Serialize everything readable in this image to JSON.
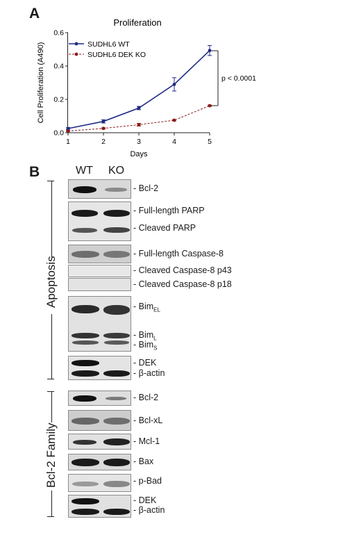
{
  "panel_a": {
    "letter": "A",
    "p_value": "p < 0.0001"
  },
  "panel_b": {
    "letter": "B",
    "lanes": [
      "WT",
      "KO"
    ],
    "groups": [
      "Apoptosis",
      "Bcl-2 Family"
    ],
    "labels": {
      "bcl2_a": "- Bcl-2",
      "parp_full": "- Full-length PARP",
      "parp_cleaved": "- Cleaved PARP",
      "casp8_full": "- Full-length Caspase-8",
      "casp8_p43": "- Cleaved Caspase-8 p43",
      "casp8_p18": "- Cleaved Caspase-8 p18",
      "bim_el_main": "- Bim",
      "bim_el_sub": "EL",
      "bim_l_main": "- Bim",
      "bim_l_sub": "L",
      "bim_s_main": "- Bim",
      "bim_s_sub": "S",
      "dek_a": "- DEK",
      "actin_a": "- β-actin",
      "bcl2_b": "- Bcl-2",
      "bclxl": "- Bcl-xL",
      "mcl1": "- Mcl-1",
      "bax": "- Bax",
      "pbad": "- p-Bad",
      "dek_b": "- DEK",
      "actin_b": "- β-actin"
    }
  },
  "chart_data": {
    "type": "line",
    "title": "Proliferation",
    "xlabel": "Days",
    "ylabel": "Cell Proliferation (A490)",
    "x": [
      1,
      2,
      3,
      4,
      5
    ],
    "xlim": [
      1,
      5
    ],
    "ylim": [
      0,
      0.6
    ],
    "yticks": [
      "0.0",
      "0.2",
      "0.4",
      "0.6"
    ],
    "xticks": [
      "1",
      "2",
      "3",
      "4",
      "5"
    ],
    "grid": false,
    "legend_position": "top-left",
    "series": [
      {
        "name": "SUDHL6 WT",
        "values": [
          0.025,
          0.068,
          0.148,
          0.29,
          0.493
        ],
        "errors": [
          0.006,
          0.01,
          0.01,
          0.04,
          0.03
        ],
        "color": "#1f2a86",
        "style": "solid"
      },
      {
        "name": "SUDHL6 DEK KO",
        "values": [
          0.01,
          0.026,
          0.048,
          0.075,
          0.162
        ],
        "errors": [
          0.003,
          0.004,
          0.008,
          0.004,
          0.004
        ],
        "color": "#8b1a1a",
        "style": "dashed"
      }
    ]
  }
}
